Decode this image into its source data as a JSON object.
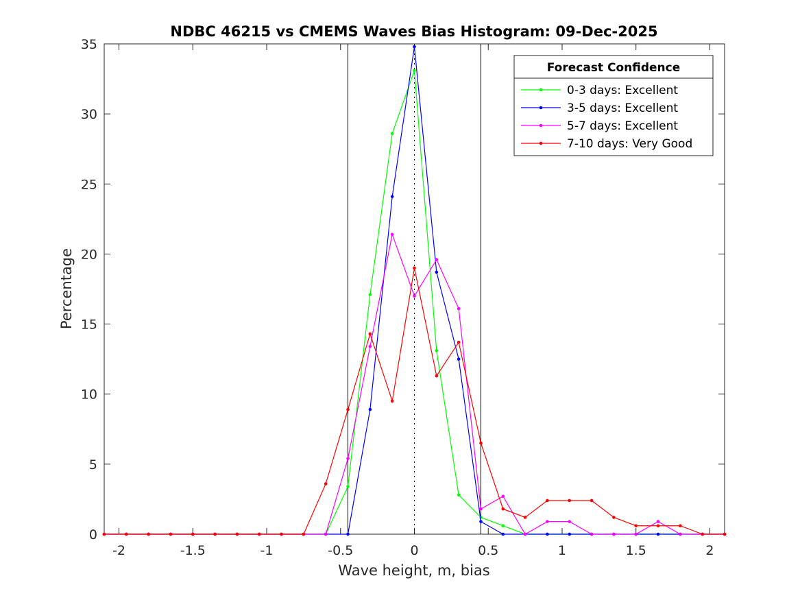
{
  "chart_data": {
    "type": "line",
    "title": "NDBC 46215 vs CMEMS Waves Bias Histogram: 09-Dec-2025",
    "xlabel": "Wave height, m, bias",
    "ylabel": "Percentage",
    "xlim": [
      -2.1,
      2.1
    ],
    "ylim": [
      0,
      35
    ],
    "xticks": [
      -2,
      -1.5,
      -1,
      -0.5,
      0,
      0.5,
      1,
      1.5,
      2
    ],
    "xtick_labels": [
      "-2",
      "-1.5",
      "-1",
      "-0.5",
      "0",
      "0.5",
      "1",
      "1.5",
      "2"
    ],
    "yticks": [
      0,
      5,
      10,
      15,
      20,
      25,
      30,
      35
    ],
    "ytick_labels": [
      "0",
      "5",
      "10",
      "15",
      "20",
      "25",
      "30",
      "35"
    ],
    "grid": false,
    "reference_lines": {
      "solid_x": [
        -0.45,
        0.45
      ],
      "dotted_x": [
        0
      ]
    },
    "legend": {
      "title": "Forecast Confidence",
      "placement": "top-right"
    },
    "x": [
      -2.1,
      -1.95,
      -1.8,
      -1.65,
      -1.5,
      -1.35,
      -1.2,
      -1.05,
      -0.9,
      -0.75,
      -0.6,
      -0.45,
      -0.3,
      -0.15,
      0,
      0.15,
      0.3,
      0.45,
      0.6,
      0.75,
      0.9,
      1.05,
      1.2,
      1.35,
      1.5,
      1.65,
      1.8,
      1.95,
      2.1
    ],
    "series": [
      {
        "name": "0-3 days: Excellent",
        "color": "#00ff00",
        "values": [
          0,
          0,
          0,
          0,
          0,
          0,
          0,
          0,
          0,
          0,
          0,
          3.4,
          17.1,
          28.6,
          33.1,
          13.1,
          2.8,
          1.2,
          0.6,
          0,
          0,
          0,
          0,
          0,
          0,
          0,
          0,
          0,
          0
        ]
      },
      {
        "name": "3-5 days: Excellent",
        "color": "#0000ff",
        "values": [
          0,
          0,
          0,
          0,
          0,
          0,
          0,
          0,
          0,
          0,
          0,
          0,
          8.9,
          24.1,
          34.8,
          18.7,
          12.5,
          0.9,
          0,
          0,
          0,
          0,
          0,
          0,
          0,
          0,
          0,
          0,
          0
        ]
      },
      {
        "name": "5-7 days: Excellent",
        "color": "#ff00ff",
        "values": [
          0,
          0,
          0,
          0,
          0,
          0,
          0,
          0,
          0,
          0,
          0,
          5.4,
          13.4,
          21.4,
          17,
          19.6,
          16.1,
          1.8,
          2.7,
          0,
          0.9,
          0.9,
          0,
          0,
          0,
          0.9,
          0,
          0,
          0
        ]
      },
      {
        "name": "7-10 days: Very Good",
        "color": "#ff0000",
        "values": [
          0,
          0,
          0,
          0,
          0,
          0,
          0,
          0,
          0,
          0,
          3.6,
          8.9,
          14.3,
          9.5,
          19,
          11.3,
          13.7,
          6.5,
          1.8,
          1.2,
          2.4,
          2.4,
          2.4,
          1.2,
          0.6,
          0.6,
          0.6,
          0,
          0
        ]
      }
    ]
  }
}
